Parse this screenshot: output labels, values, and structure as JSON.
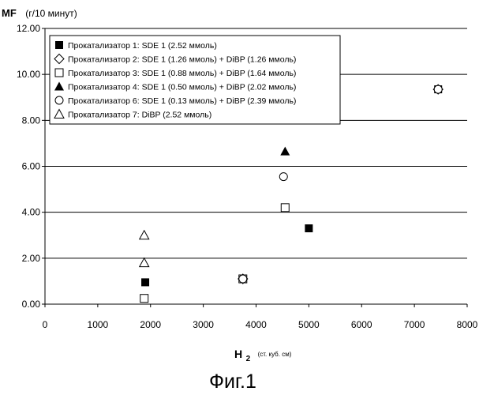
{
  "chart_data": {
    "type": "scatter",
    "caption": "Фиг.1",
    "ylabel": "MF",
    "ylabel_unit": "(г/10 минут)",
    "xlabel": "H",
    "xlabel_subscript": "2",
    "xlabel_unit": "(ст. куб. см)",
    "xlim": [
      0,
      8000
    ],
    "ylim": [
      0,
      12
    ],
    "x_ticks": [
      "0",
      "1000",
      "2000",
      "3000",
      "4000",
      "5000",
      "6000",
      "7000",
      "8000"
    ],
    "y_ticks": [
      "0.00",
      "2.00",
      "4.00",
      "6.00",
      "8.00",
      "10.00",
      "12.00"
    ],
    "grid": "horizontal",
    "legend_position": "top-left",
    "series": [
      {
        "name": "Прокатализатор 1: SDE 1 (2.52 ммоль)",
        "marker": "filled-square",
        "points": [
          [
            1900,
            0.95
          ],
          [
            5000,
            3.3
          ],
          [
            7450,
            9.35
          ]
        ]
      },
      {
        "name": "Прокатализатор 2: SDE 1 (1.26 ммоль) + DiBP (1.26 ммоль)",
        "marker": "open-diamond",
        "points": [
          [
            3750,
            1.1
          ],
          [
            7450,
            9.35
          ]
        ]
      },
      {
        "name": "Прокатализатор 3: SDE 1 (0.88 ммоль) + DiBP (1.64 ммоль)",
        "marker": "open-square",
        "points": [
          [
            1880,
            0.25
          ],
          [
            3750,
            1.1
          ],
          [
            4550,
            4.2
          ]
        ]
      },
      {
        "name": "Прокатализатор 4: SDE 1 (0.50 ммоль) + DiBP (2.02 ммоль)",
        "marker": "filled-triangle",
        "points": [
          [
            4550,
            6.65
          ]
        ]
      },
      {
        "name": "Прокатализатор 6: SDE 1 (0.13 ммоль) + DiBP (2.39 ммоль)",
        "marker": "open-circle",
        "points": [
          [
            3750,
            1.1
          ],
          [
            4520,
            5.55
          ],
          [
            7450,
            9.35
          ]
        ]
      },
      {
        "name": "Прокатализатор 7: DiBP (2.52 ммоль)",
        "marker": "open-triangle",
        "points": [
          [
            1880,
            3.0
          ],
          [
            1880,
            1.8
          ]
        ]
      }
    ]
  }
}
